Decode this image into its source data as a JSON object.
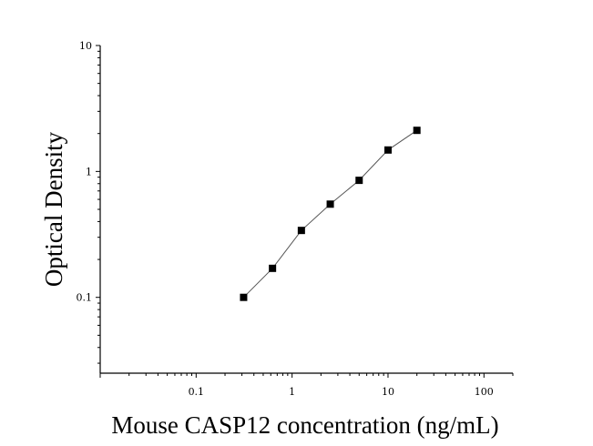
{
  "chart_data": {
    "type": "scatter",
    "xlabel": "Mouse CASP12 concentration (ng/mL)",
    "ylabel": "Optical Density",
    "xscale": "log",
    "yscale": "log",
    "xlim": [
      0.01,
      200
    ],
    "ylim": [
      0.025,
      10
    ],
    "x_ticks": [
      0.1,
      1,
      10,
      100
    ],
    "x_tick_labels": [
      "0.1",
      "1",
      "10",
      "100"
    ],
    "y_ticks": [
      0.1,
      1,
      10
    ],
    "y_tick_labels": [
      "0.1",
      "1",
      "10"
    ],
    "grid": false,
    "marker": "square",
    "fit_line": true,
    "series": [
      {
        "x": [
          0.3125,
          0.625,
          1.25,
          2.5,
          5,
          10,
          20
        ],
        "y": [
          0.1,
          0.17,
          0.34,
          0.55,
          0.85,
          1.48,
          2.12
        ]
      }
    ]
  }
}
